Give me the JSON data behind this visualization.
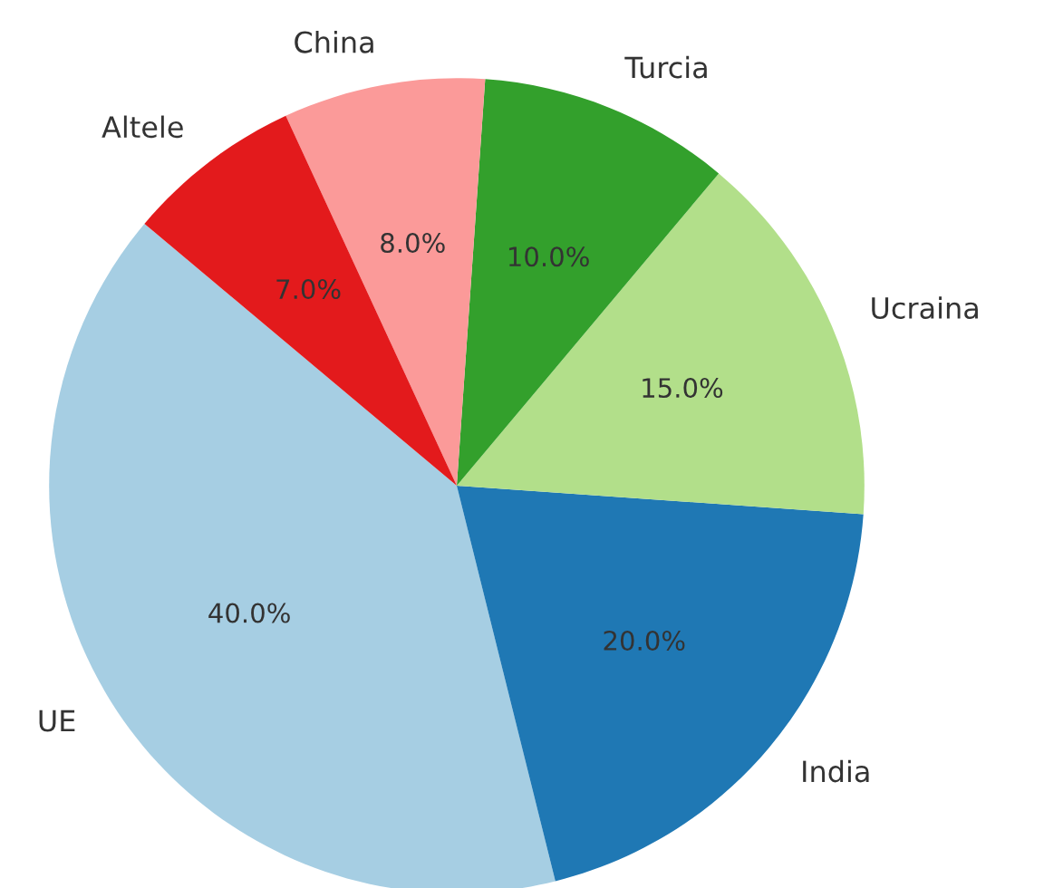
{
  "chart_data": {
    "type": "pie",
    "categories": [
      "UE",
      "India",
      "Ucraina",
      "Turcia",
      "China",
      "Altele"
    ],
    "values": [
      40,
      20,
      15,
      10,
      8,
      7
    ],
    "value_labels": [
      "40.0%",
      "20.0%",
      "15.0%",
      "10.0%",
      "8.0%",
      "7.0%"
    ],
    "colors": [
      "#a6cee3",
      "#1f78b4",
      "#b2df8a",
      "#33a02c",
      "#fb9a99",
      "#e31a1c"
    ]
  }
}
